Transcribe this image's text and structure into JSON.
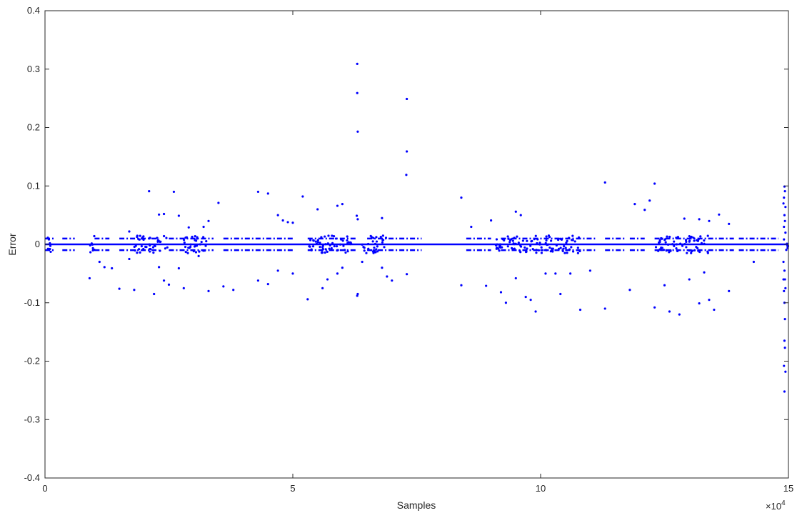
{
  "chart_data": {
    "type": "scatter",
    "title": "",
    "xlabel": "Samples",
    "ylabel": "Error",
    "x_exponent_label": "×10",
    "x_exponent_power": "4",
    "xlim": [
      0,
      15
    ],
    "ylim": [
      -0.4,
      0.4
    ],
    "x_ticks": [
      0,
      5,
      10,
      15
    ],
    "x_tick_labels": [
      "0",
      "5",
      "10",
      "15"
    ],
    "y_ticks": [
      -0.4,
      -0.3,
      -0.2,
      -0.1,
      0,
      0.1,
      0.2,
      0.3,
      0.4
    ],
    "y_tick_labels": [
      "-0.4",
      "-0.3",
      "-0.2",
      "-0.1",
      "0",
      "0.1",
      "0.2",
      "0.3",
      "0.4"
    ],
    "grid": false,
    "box": true,
    "marker_color": "#0000ff",
    "band_levels": [
      0.01,
      -0.01
    ],
    "band_segments": [
      [
        0.0,
        0.2
      ],
      [
        0.35,
        0.6
      ],
      [
        1.0,
        1.3
      ],
      [
        1.5,
        2.3
      ],
      [
        2.5,
        3.4
      ],
      [
        3.6,
        5.0
      ],
      [
        5.3,
        6.3
      ],
      [
        6.5,
        7.6
      ],
      [
        8.5,
        9.0
      ],
      [
        9.2,
        11.1
      ],
      [
        11.3,
        11.7
      ],
      [
        11.8,
        12.1
      ],
      [
        12.3,
        13.9
      ],
      [
        14.0,
        14.8
      ]
    ],
    "zero_bursts": [
      [
        0.05,
        0.15
      ],
      [
        0.9,
        1.0
      ],
      [
        1.8,
        2.5
      ],
      [
        2.8,
        3.3
      ],
      [
        5.3,
        6.2
      ],
      [
        6.4,
        6.9
      ],
      [
        9.1,
        9.9
      ],
      [
        9.9,
        10.8
      ],
      [
        12.3,
        13.4
      ],
      [
        14.9,
        15.0
      ]
    ],
    "points": [
      [
        6.3,
        0.309
      ],
      [
        6.3,
        0.259
      ],
      [
        6.31,
        0.193
      ],
      [
        7.3,
        0.249
      ],
      [
        7.3,
        0.159
      ],
      [
        7.29,
        0.119
      ],
      [
        2.1,
        0.091
      ],
      [
        2.6,
        0.09
      ],
      [
        4.3,
        0.09
      ],
      [
        4.5,
        0.087
      ],
      [
        5.2,
        0.082
      ],
      [
        3.5,
        0.071
      ],
      [
        5.9,
        0.066
      ],
      [
        6.0,
        0.069
      ],
      [
        8.4,
        0.08
      ],
      [
        11.3,
        0.106
      ],
      [
        11.9,
        0.069
      ],
      [
        12.2,
        0.075
      ],
      [
        12.3,
        0.104
      ],
      [
        9.5,
        0.056
      ],
      [
        9.6,
        0.05
      ],
      [
        12.1,
        0.059
      ],
      [
        13.6,
        0.051
      ],
      [
        13.2,
        0.043
      ],
      [
        2.3,
        0.051
      ],
      [
        2.4,
        0.052
      ],
      [
        2.7,
        0.049
      ],
      [
        4.7,
        0.05
      ],
      [
        4.8,
        0.041
      ],
      [
        4.9,
        0.038
      ],
      [
        5.0,
        0.037
      ],
      [
        5.5,
        0.06
      ],
      [
        6.8,
        0.045
      ],
      [
        8.6,
        0.03
      ],
      [
        9.0,
        0.041
      ],
      [
        3.3,
        0.04
      ],
      [
        3.2,
        0.03
      ],
      [
        1.7,
        0.022
      ],
      [
        2.9,
        0.029
      ],
      [
        13.8,
        0.035
      ],
      [
        13.4,
        0.04
      ],
      [
        12.9,
        0.044
      ],
      [
        6.29,
        0.049
      ],
      [
        6.31,
        0.043
      ],
      [
        0.9,
        -0.058
      ],
      [
        1.1,
        -0.03
      ],
      [
        1.2,
        -0.039
      ],
      [
        1.35,
        -0.041
      ],
      [
        1.5,
        -0.076
      ],
      [
        1.8,
        -0.078
      ],
      [
        2.2,
        -0.085
      ],
      [
        2.3,
        -0.039
      ],
      [
        2.4,
        -0.062
      ],
      [
        2.5,
        -0.069
      ],
      [
        2.7,
        -0.041
      ],
      [
        2.8,
        -0.075
      ],
      [
        3.3,
        -0.08
      ],
      [
        3.6,
        -0.072
      ],
      [
        3.8,
        -0.078
      ],
      [
        4.3,
        -0.062
      ],
      [
        4.5,
        -0.068
      ],
      [
        5.3,
        -0.094
      ],
      [
        5.6,
        -0.075
      ],
      [
        5.7,
        -0.06
      ],
      [
        5.9,
        -0.05
      ],
      [
        6.0,
        -0.04
      ],
      [
        6.3,
        -0.088
      ],
      [
        6.31,
        -0.085
      ],
      [
        6.4,
        -0.03
      ],
      [
        6.8,
        -0.04
      ],
      [
        6.9,
        -0.055
      ],
      [
        7.0,
        -0.062
      ],
      [
        7.3,
        -0.051
      ],
      [
        8.4,
        -0.07
      ],
      [
        8.9,
        -0.071
      ],
      [
        9.2,
        -0.082
      ],
      [
        9.3,
        -0.1
      ],
      [
        9.5,
        -0.058
      ],
      [
        9.7,
        -0.09
      ],
      [
        9.8,
        -0.095
      ],
      [
        9.9,
        -0.115
      ],
      [
        10.1,
        -0.05
      ],
      [
        10.3,
        -0.05
      ],
      [
        10.4,
        -0.085
      ],
      [
        10.6,
        -0.05
      ],
      [
        10.8,
        -0.112
      ],
      [
        11.0,
        -0.045
      ],
      [
        11.3,
        -0.11
      ],
      [
        11.8,
        -0.078
      ],
      [
        12.3,
        -0.108
      ],
      [
        12.5,
        -0.07
      ],
      [
        12.6,
        -0.115
      ],
      [
        12.8,
        -0.12
      ],
      [
        13.0,
        -0.06
      ],
      [
        13.2,
        -0.101
      ],
      [
        13.3,
        -0.048
      ],
      [
        13.4,
        -0.095
      ],
      [
        13.5,
        -0.112
      ],
      [
        13.8,
        -0.08
      ],
      [
        14.3,
        -0.03
      ],
      [
        5.0,
        -0.05
      ],
      [
        4.7,
        -0.045
      ],
      [
        1.7,
        -0.025
      ],
      [
        3.1,
        -0.02
      ],
      [
        14.92,
        0.099
      ],
      [
        14.93,
        0.091
      ],
      [
        14.91,
        0.08
      ],
      [
        14.9,
        0.07
      ],
      [
        14.94,
        0.064
      ],
      [
        14.92,
        0.05
      ],
      [
        14.93,
        0.04
      ],
      [
        14.91,
        0.03
      ],
      [
        14.94,
        0.02
      ],
      [
        14.9,
        -0.03
      ],
      [
        14.92,
        -0.045
      ],
      [
        14.93,
        -0.06
      ],
      [
        14.91,
        -0.08
      ],
      [
        14.92,
        -0.1
      ],
      [
        14.93,
        -0.128
      ],
      [
        14.92,
        -0.165
      ],
      [
        14.93,
        -0.177
      ],
      [
        14.91,
        -0.208
      ],
      [
        14.94,
        -0.218
      ],
      [
        14.92,
        -0.252
      ],
      [
        14.9,
        -0.06
      ],
      [
        14.94,
        -0.075
      ]
    ]
  }
}
